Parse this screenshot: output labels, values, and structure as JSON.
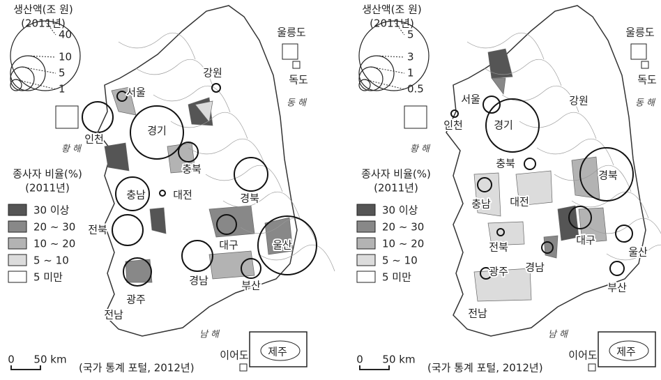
{
  "maps": [
    {
      "size_legend": {
        "title": "생산액(조 원)",
        "year": "(2011년)",
        "values": [
          "40",
          "10",
          "5",
          "1"
        ]
      },
      "share_legend": {
        "title": "종사자 비율(%)",
        "year": "(2011년)",
        "classes": [
          "30 이상",
          "20 ~ 30",
          "10 ~ 20",
          "5 ~ 10",
          "5 미만"
        ]
      },
      "islands": [
        "울릉도",
        "독도"
      ],
      "seas": [
        "동 해",
        "황 해",
        "남 해"
      ],
      "regions": [
        "서울",
        "인천",
        "경기",
        "강원",
        "충북",
        "대전",
        "충남",
        "경북",
        "전북",
        "대구",
        "울산",
        "경남",
        "부산",
        "광주",
        "전남"
      ],
      "scale": {
        "zero": "0",
        "distance": "50 km"
      },
      "source": "(국가 통계 포털, 2012년)",
      "jeju": {
        "ieodo": "이어도",
        "name": "제주"
      }
    },
    {
      "size_legend": {
        "title": "생산액(조 원)",
        "year": "(2011년)",
        "values": [
          "5",
          "3",
          "1",
          "0.5"
        ]
      },
      "share_legend": {
        "title": "종사자 비율(%)",
        "year": "(2011년)",
        "classes": [
          "30 이상",
          "20 ~ 30",
          "10 ~ 20",
          "5 ~ 10",
          "5 미만"
        ]
      },
      "islands": [
        "울릉도",
        "독도"
      ],
      "seas": [
        "동 해",
        "황 해",
        "남 해"
      ],
      "regions": [
        "서울",
        "인천",
        "경기",
        "강원",
        "충북",
        "경북",
        "충남",
        "대전",
        "전북",
        "대구",
        "울산",
        "광주",
        "경남",
        "부산",
        "전남"
      ],
      "scale": {
        "zero": "0",
        "distance": "50 km"
      },
      "source": "(국가 통계 포털, 2012년)",
      "jeju": {
        "ieodo": "이어도",
        "name": "제주"
      }
    }
  ]
}
